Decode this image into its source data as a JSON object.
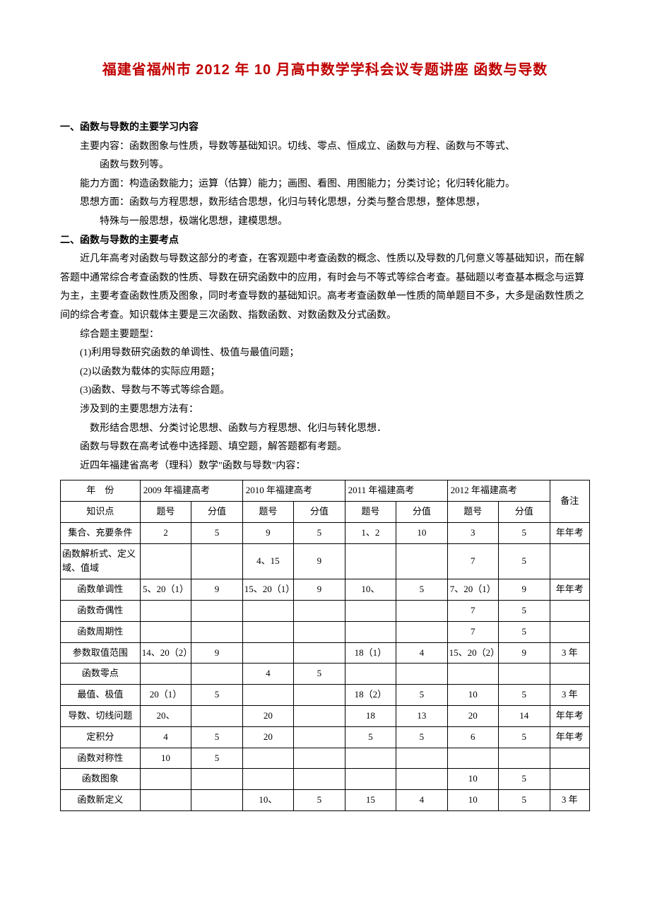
{
  "title": "福建省福州市 2012 年 10 月高中数学学科会议专题讲座 函数与导数",
  "section1": {
    "head": "一、函数与导数的主要学习内容",
    "l1": "主要内容：函数图象与性质，导数等基础知识。切线、零点、恒成立、函数与方程、函数与不等式、",
    "l1b": "函数与数列等。",
    "l2": "能力方面：构造函数能力；运算（估算）能力；画图、看图、用图能力；分类讨论；化归转化能力。",
    "l3": "思想方面：函数与方程思想，数形结合思想，化归与转化思想，分类与整合思想，整体思想，",
    "l3b": "特殊与一般思想，极端化思想，建模思想。"
  },
  "section2": {
    "head": "二、函数与导数的主要考点",
    "p1": "近几年高考对函数与导数这部分的考查，在客观题中考查函数的概念、性质以及导数的几何意义等基础知识，而在解答题中通常综合考查函数的性质、导数在研究函数中的应用，有时会与不等式等综合考查。基础题以考查基本概念与运算为主，主要考查函数性质及图象，同时考查导数的基础知识。高考考查函数单一性质的简单题目不多，大多是函数性质之间的综合考查。知识载体主要是三次函数、指数函数、对数函数及分式函数。",
    "p2": "综合题主要题型：",
    "b1": "(1)利用导数研究函数的单调性、极值与最值问题；",
    "b2": "(2)以函数为载体的实际应用题；",
    "b3": "(3)函数、导数与不等式等综合题。",
    "p3": "涉及到的主要思想方法有：",
    "p3b": "数形结合思想、分类讨论思想、函数与方程思想、化归与转化思想．",
    "p4": "函数与导数在高考试卷中选择题、填空题，解答题都有考题。",
    "p5": "近四年福建省高考（理科）数学\"函数与导数\"内容："
  },
  "table": {
    "header": {
      "year": "年　份",
      "y2009": "2009 年福建高考",
      "y2010": "2010 年福建高考",
      "y2011": "2011 年福建高考",
      "y2012": "2012 年福建高考",
      "note": "备注",
      "topic": "知识点",
      "qno": "题号",
      "score": "分值"
    },
    "rows": [
      {
        "topic": "集合、充要条件",
        "c": [
          "2",
          "5",
          "9",
          "5",
          "1、2",
          "10",
          "3",
          "5"
        ],
        "note": "年年考"
      },
      {
        "topic": "函数解析式、定义域、值域",
        "c": [
          "",
          "",
          "4、15",
          "9",
          "",
          "",
          "7",
          "5"
        ],
        "note": ""
      },
      {
        "topic": "函数单调性",
        "c": [
          "5、20（1）",
          "9",
          "15、20（1）",
          "9",
          "10、",
          "5",
          "7、20（1）",
          "9"
        ],
        "note": "年年考"
      },
      {
        "topic": "函数奇偶性",
        "c": [
          "",
          "",
          "",
          "",
          "",
          "",
          "7",
          "5"
        ],
        "note": ""
      },
      {
        "topic": "函数周期性",
        "c": [
          "",
          "",
          "",
          "",
          "",
          "",
          "7",
          "5"
        ],
        "note": ""
      },
      {
        "topic": "参数取值范围",
        "c": [
          "14、20（2）",
          "9",
          "",
          "",
          "18（1）",
          "4",
          "15、20（2）",
          "9"
        ],
        "note": "3 年"
      },
      {
        "topic": "函数零点",
        "c": [
          "",
          "",
          "4",
          "5",
          "",
          "",
          "",
          ""
        ],
        "note": ""
      },
      {
        "topic": "最值、极值",
        "c": [
          "20（1）",
          "5",
          "",
          "",
          "18（2）",
          "5",
          "10",
          "5"
        ],
        "note": "3 年"
      },
      {
        "topic": "导数、切线问题",
        "c": [
          "20、",
          "",
          "20",
          "",
          "18",
          "13",
          "20",
          "14"
        ],
        "note": "年年考"
      },
      {
        "topic": "定积分",
        "c": [
          "4",
          "5",
          "20",
          "",
          "5",
          "5",
          "6",
          "5"
        ],
        "note": "年年考"
      },
      {
        "topic": "函数对称性",
        "c": [
          "10",
          "5",
          "",
          "",
          "",
          "",
          "",
          ""
        ],
        "note": ""
      },
      {
        "topic": "函数图象",
        "c": [
          "",
          "",
          "",
          "",
          "",
          "",
          "10",
          "5"
        ],
        "note": ""
      },
      {
        "topic": "函数新定义",
        "c": [
          "",
          "",
          "10、",
          "5",
          "15",
          "4",
          "10",
          "5"
        ],
        "note": "3 年"
      }
    ]
  }
}
